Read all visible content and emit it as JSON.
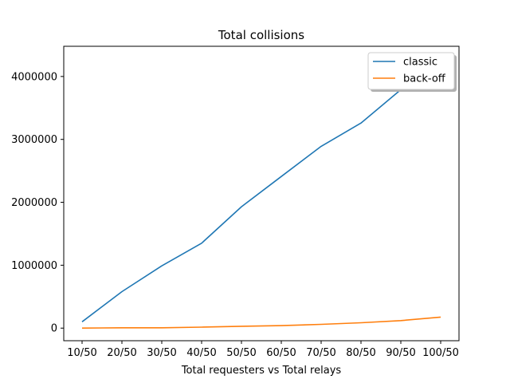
{
  "chart_data": {
    "type": "line",
    "title": "Total collisions",
    "xlabel": "Total requesters vs Total relays",
    "ylabel": "",
    "categories": [
      "10/50",
      "20/50",
      "30/50",
      "40/50",
      "50/50",
      "60/50",
      "70/50",
      "80/50",
      "90/50",
      "100/50"
    ],
    "ylim": [
      -200000,
      4480000
    ],
    "yticks": [
      0,
      1000000,
      2000000,
      3000000,
      4000000
    ],
    "ytick_labels": [
      "0",
      "1000000",
      "2000000",
      "3000000",
      "4000000"
    ],
    "grid": false,
    "legend_position": "top-right",
    "series": [
      {
        "name": "classic",
        "color": "#1f77b4",
        "values": [
          100000,
          580000,
          990000,
          1350000,
          1930000,
          2410000,
          2890000,
          3260000,
          3790000,
          4260000
        ]
      },
      {
        "name": "back-off",
        "color": "#ff7f0e",
        "values": [
          1000,
          5000,
          6000,
          15000,
          30000,
          40000,
          60000,
          85000,
          120000,
          175000
        ]
      }
    ]
  }
}
